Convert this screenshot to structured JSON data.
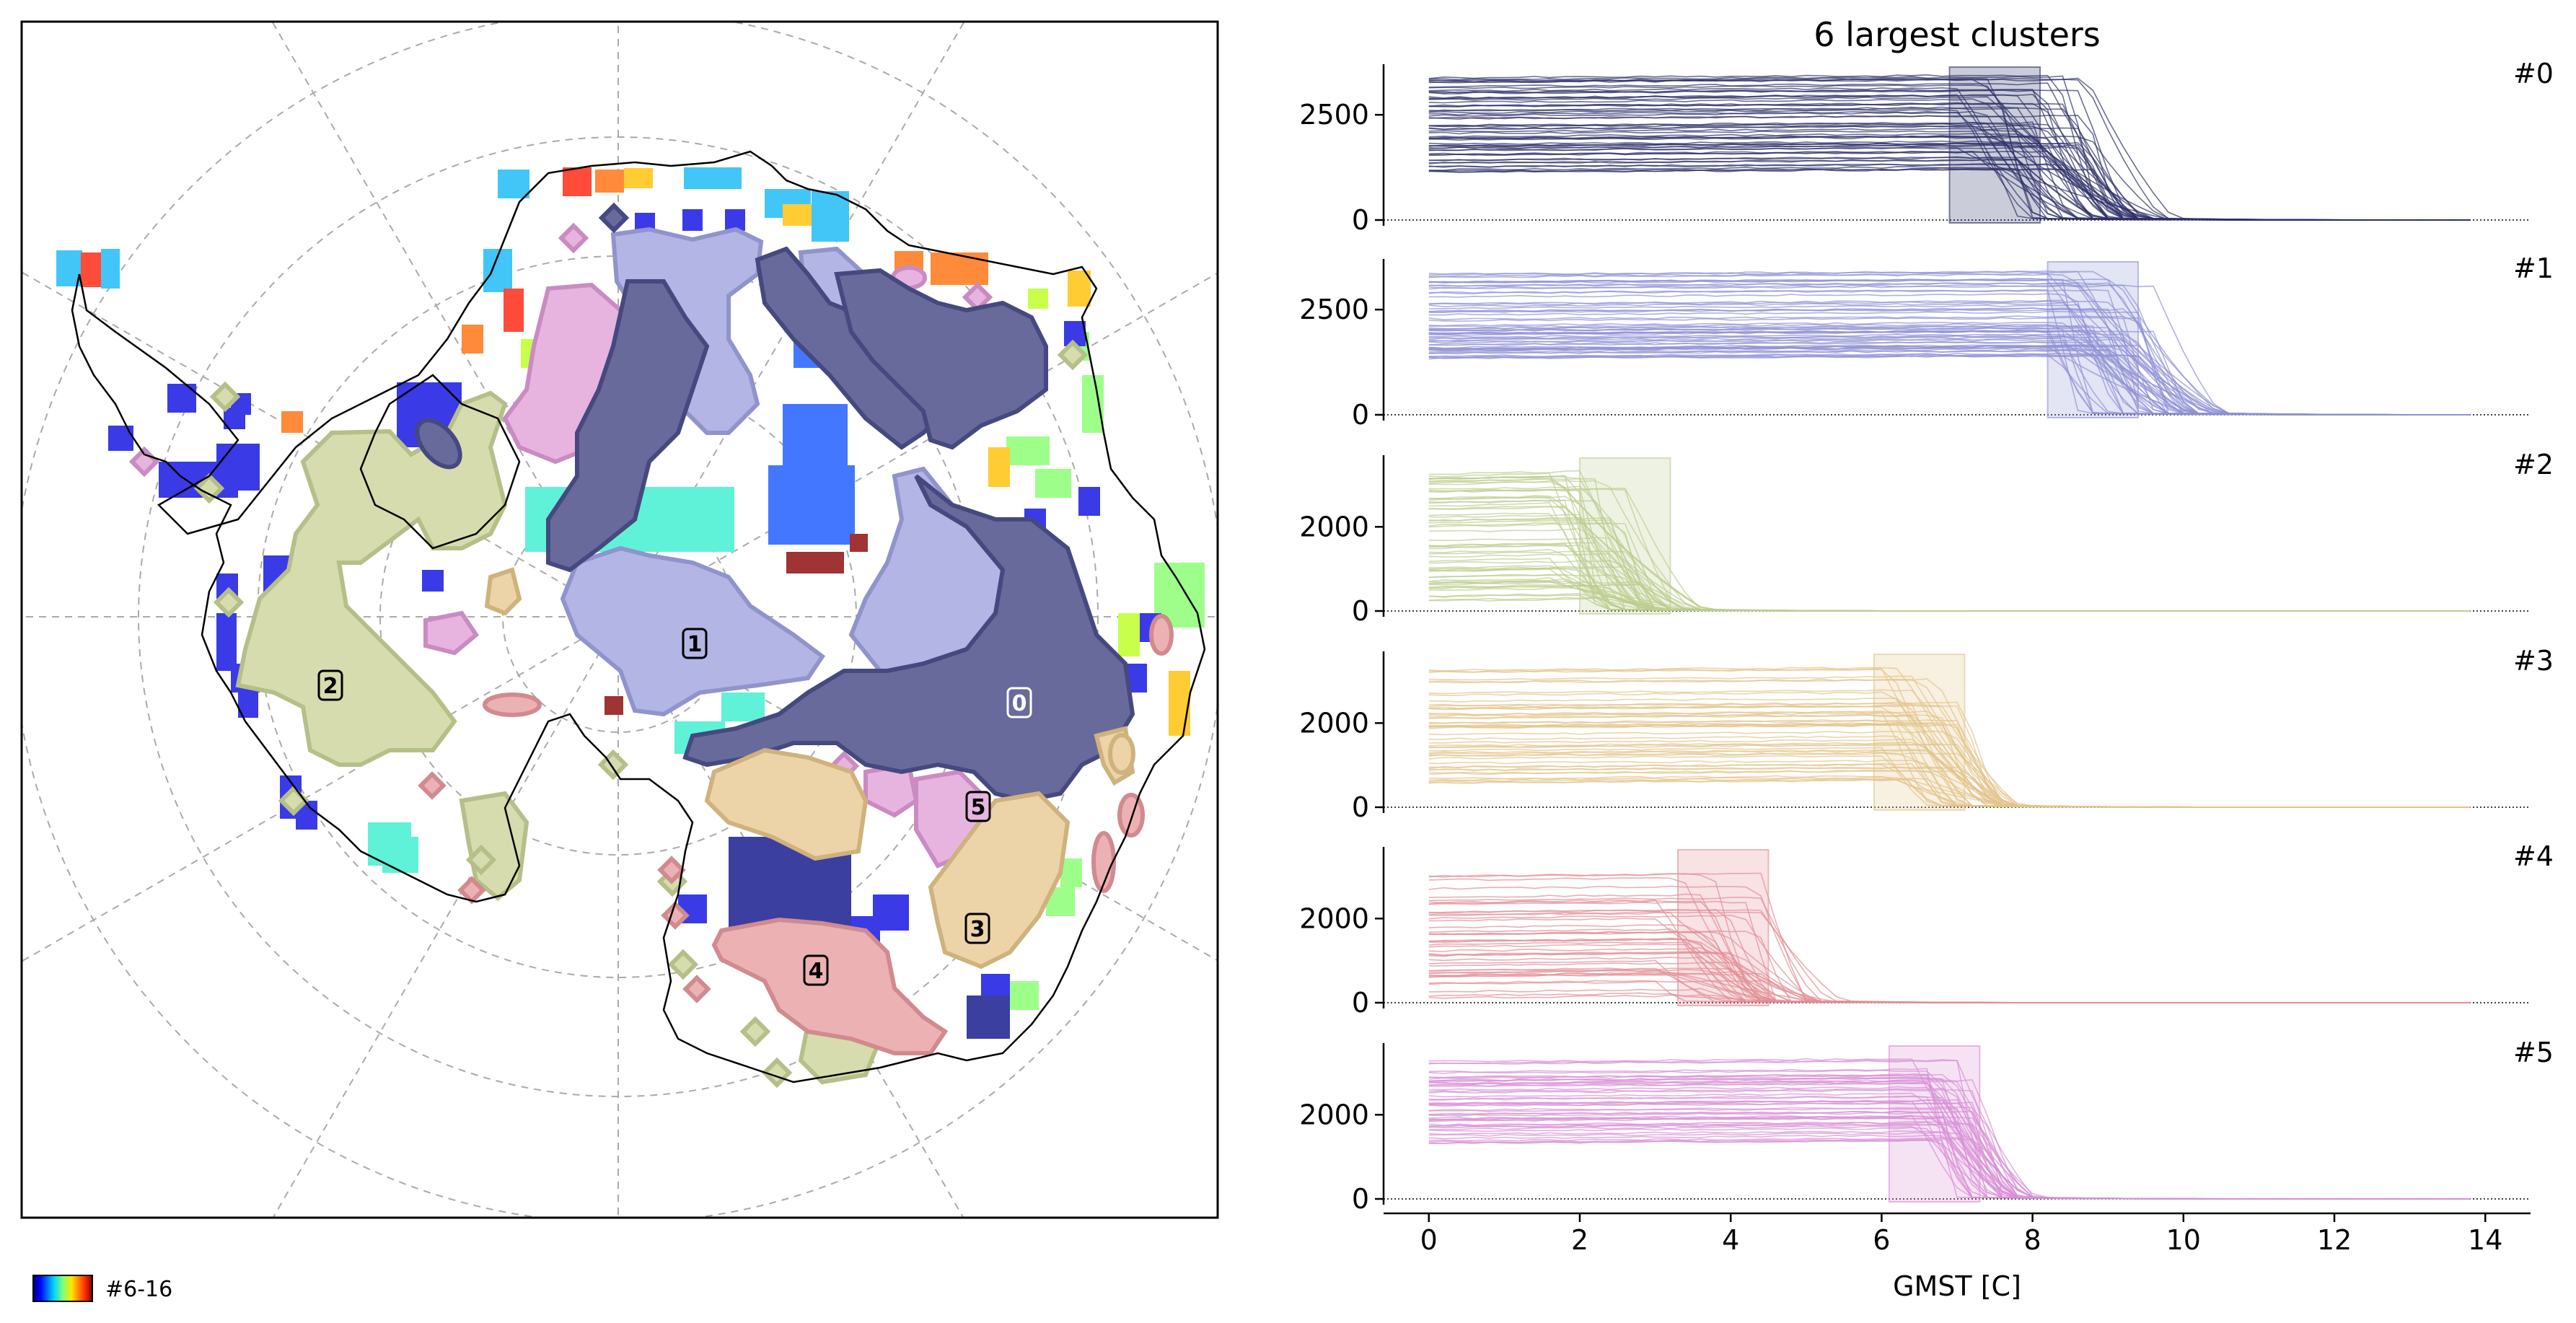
{
  "figure": {
    "colorbar_label": "#6-16",
    "map_clusters": [
      {
        "id": "0",
        "color": "#3b3f7e"
      },
      {
        "id": "1",
        "color": "#9ea3db"
      },
      {
        "id": "2",
        "color": "#c9d59c"
      },
      {
        "id": "3",
        "color": "#e6c995"
      },
      {
        "id": "4",
        "color": "#e59ea2"
      },
      {
        "id": "5",
        "color": "#dfa3d8"
      }
    ]
  },
  "chart_data": {
    "type": "line",
    "title": "6 largest clusters",
    "xlabel": "GMST [C]",
    "xlim": [
      -0.6,
      14.6
    ],
    "xticks": [
      0,
      2,
      4,
      6,
      8,
      10,
      12,
      14
    ],
    "panels": [
      {
        "label": "#0",
        "color": "#2e3268",
        "ylim": [
          0,
          3600
        ],
        "yticks": [
          0,
          2500
        ],
        "window": [
          6.9,
          8.1
        ],
        "ymin": 1100,
        "ymax": 3450,
        "drop_start": 7.0,
        "drop_end": 9.6,
        "n_lines": 60
      },
      {
        "label": "#1",
        "color": "#8e92d4",
        "ylim": [
          0,
          3600
        ],
        "yticks": [
          0,
          2500
        ],
        "window": [
          8.2,
          9.4
        ],
        "ymin": 1300,
        "ymax": 3350,
        "drop_start": 8.2,
        "drop_end": 10.3,
        "n_lines": 60
      },
      {
        "label": "#2",
        "color": "#bccd8e",
        "ylim": [
          0,
          3600
        ],
        "yticks": [
          0,
          2000
        ],
        "window": [
          2.0,
          3.2
        ],
        "ymin": 150,
        "ymax": 3400,
        "drop_start": 1.6,
        "drop_end": 3.4,
        "n_lines": 60
      },
      {
        "label": "#3",
        "color": "#e2c389",
        "ylim": [
          0,
          3600
        ],
        "yticks": [
          0,
          2000
        ],
        "window": [
          5.9,
          7.1
        ],
        "ymin": 500,
        "ymax": 3300,
        "drop_start": 6.0,
        "drop_end": 7.6,
        "n_lines": 50
      },
      {
        "label": "#4",
        "color": "#e28d94",
        "ylim": [
          0,
          3600
        ],
        "yticks": [
          0,
          2000
        ],
        "window": [
          3.3,
          4.5
        ],
        "ymin": 100,
        "ymax": 3100,
        "drop_start": 3.0,
        "drop_end": 5.2,
        "n_lines": 45
      },
      {
        "label": "#5",
        "color": "#d98ed5",
        "ylim": [
          0,
          3600
        ],
        "yticks": [
          0,
          2000
        ],
        "window": [
          6.1,
          7.3
        ],
        "ymin": 1300,
        "ymax": 3300,
        "drop_start": 6.4,
        "drop_end": 7.8,
        "n_lines": 50
      }
    ]
  }
}
